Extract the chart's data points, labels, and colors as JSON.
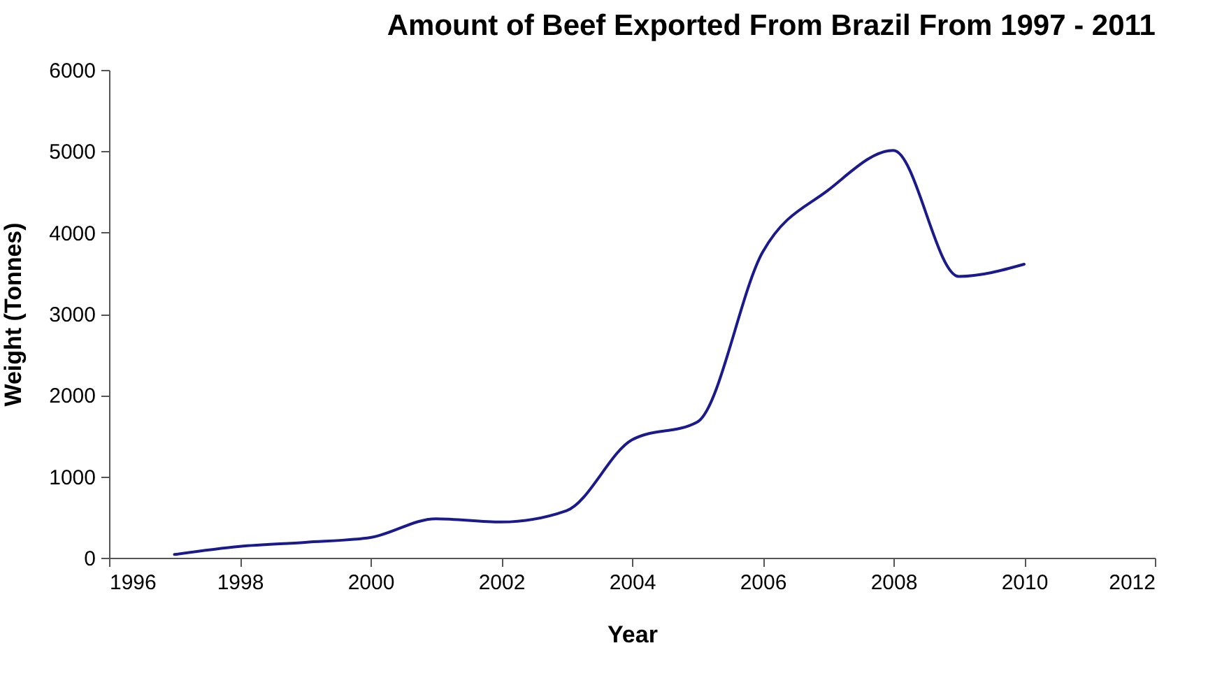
{
  "chart_data": {
    "type": "line",
    "title": "Amount of Beef Exported From Brazil From 1997 - 2011",
    "xlabel": "Year",
    "ylabel": "Weight (Tonnes)",
    "x": [
      1997,
      1998,
      1999,
      2000,
      2001,
      2002,
      2003,
      2004,
      2005,
      2006,
      2007,
      2008,
      2009,
      2010
    ],
    "series": [
      {
        "color": "#1a1a8c",
        "values": [
          40,
          140,
          190,
          250,
          480,
          440,
          580,
          1450,
          1670,
          3760,
          4520,
          5010,
          3460,
          3610
        ]
      }
    ],
    "xlim": [
      1996,
      2012
    ],
    "xticks": [
      1996,
      1998,
      2000,
      2002,
      2004,
      2006,
      2008,
      2010,
      2012
    ],
    "ylim": [
      0,
      6000
    ],
    "yticks": [
      0,
      1000,
      2000,
      3000,
      4000,
      5000,
      6000
    ],
    "grid": false,
    "marker": "none",
    "line_style": "solid"
  }
}
